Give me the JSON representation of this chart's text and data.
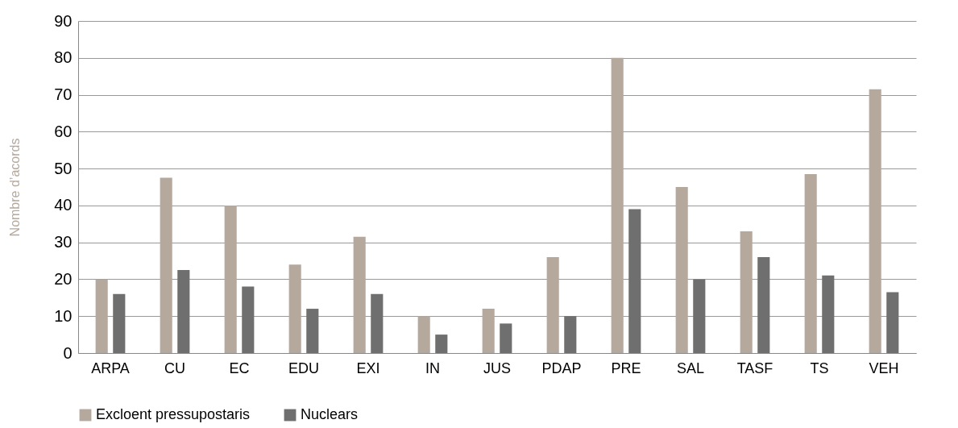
{
  "chart_data": {
    "type": "bar",
    "ylabel": "Nombre d’acords",
    "categories": [
      "ARPA",
      "CU",
      "EC",
      "EDU",
      "EXI",
      "IN",
      "JUS",
      "PDAP",
      "PRE",
      "SAL",
      "TASF",
      "TS",
      "VEH"
    ],
    "series": [
      {
        "name": "Excloent pressupostaris",
        "color": "#b5a99e",
        "values": [
          20,
          47.5,
          40,
          24,
          31.5,
          10,
          12,
          26,
          80,
          45,
          33,
          48.5,
          71.5
        ]
      },
      {
        "name": "Nuclears",
        "color": "#6f6f6f",
        "values": [
          16,
          22.5,
          18,
          12,
          16,
          5,
          8,
          10,
          39,
          20,
          26,
          21,
          16.5
        ]
      }
    ],
    "ylim": [
      0,
      90
    ],
    "yticks": [
      0,
      10,
      20,
      30,
      40,
      50,
      60,
      70,
      80,
      90
    ],
    "grid": "y",
    "legend": "bottom"
  }
}
